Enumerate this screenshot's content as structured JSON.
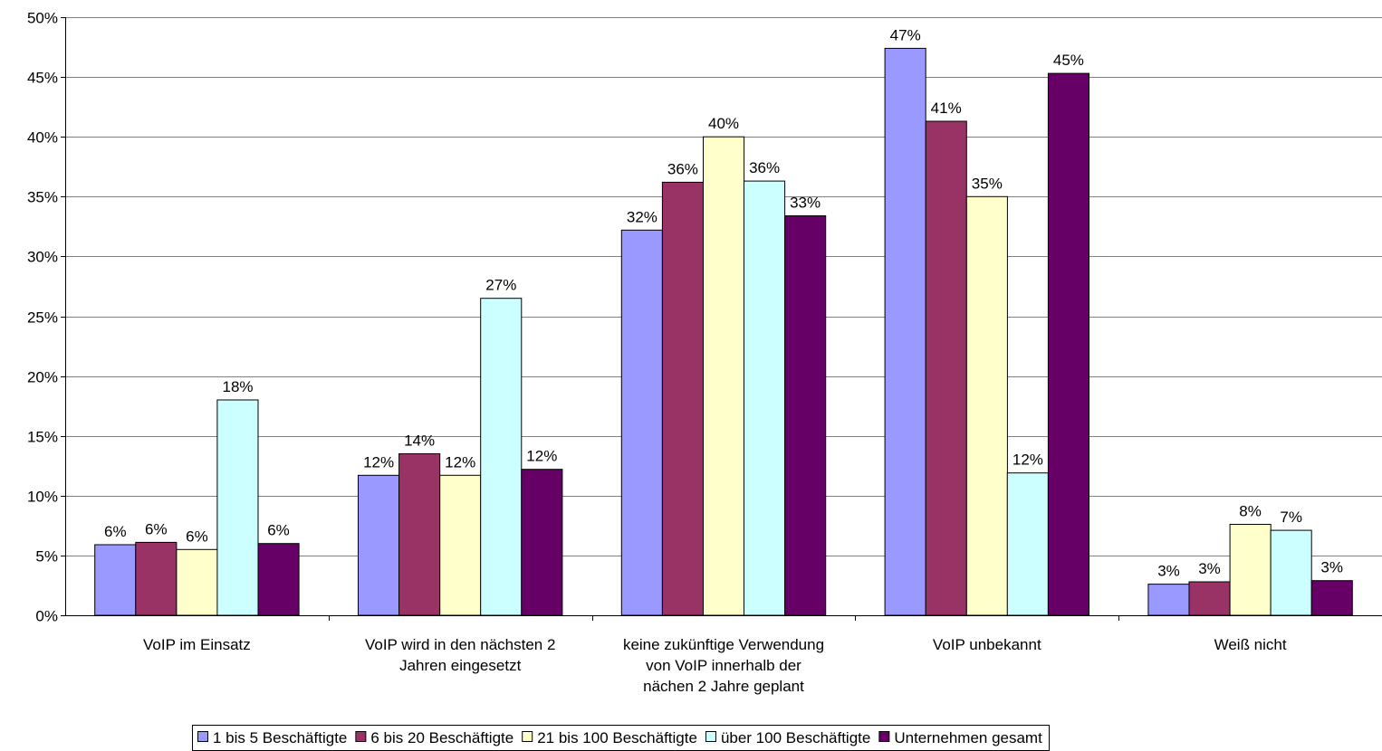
{
  "chart_data": {
    "type": "bar",
    "title": "",
    "xlabel": "",
    "ylabel": "",
    "ylim": [
      0,
      50
    ],
    "y_ticks": [
      "0%",
      "5%",
      "10%",
      "15%",
      "20%",
      "25%",
      "30%",
      "35%",
      "40%",
      "45%",
      "50%"
    ],
    "y_tick_values": [
      0,
      5,
      10,
      15,
      20,
      25,
      30,
      35,
      40,
      45,
      50
    ],
    "grid": true,
    "legend_position": "bottom",
    "categories": [
      [
        "VoIP im Einsatz"
      ],
      [
        "VoIP wird in den nächsten 2",
        "Jahren eingesetzt"
      ],
      [
        "keine zukünftige Verwendung",
        "von VoIP innerhalb der",
        "nächen 2 Jahre geplant"
      ],
      [
        "VoIP unbekannt"
      ],
      [
        "Weiß nicht"
      ]
    ],
    "series": [
      {
        "name": "1 bis 5 Beschäftigte",
        "color": "#9999FF",
        "values": [
          5.9,
          11.7,
          32.2,
          47.4,
          2.6
        ],
        "labels": [
          "6%",
          "12%",
          "32%",
          "47%",
          "3%"
        ]
      },
      {
        "name": "6 bis 20 Beschäftigte",
        "color": "#993366",
        "values": [
          6.1,
          13.5,
          36.2,
          41.3,
          2.8
        ],
        "labels": [
          "6%",
          "14%",
          "36%",
          "41%",
          "3%"
        ]
      },
      {
        "name": "21 bis 100 Beschäftigte",
        "color": "#FFFFCC",
        "values": [
          5.5,
          11.7,
          40.0,
          35.0,
          7.6
        ],
        "labels": [
          "6%",
          "12%",
          "40%",
          "35%",
          "8%"
        ]
      },
      {
        "name": "über 100 Beschäftigte",
        "color": "#CCFFFF",
        "values": [
          18.0,
          26.5,
          36.3,
          11.9,
          7.1
        ],
        "labels": [
          "18%",
          "27%",
          "36%",
          "12%",
          "7%"
        ]
      },
      {
        "name": "Unternehmen gesamt",
        "color": "#660066",
        "values": [
          6.0,
          12.2,
          33.4,
          45.3,
          2.9
        ],
        "labels": [
          "6%",
          "12%",
          "33%",
          "45%",
          "3%"
        ]
      }
    ]
  }
}
